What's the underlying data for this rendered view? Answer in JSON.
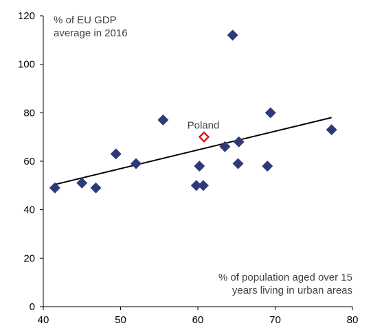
{
  "chart_data": {
    "type": "scatter",
    "title": "",
    "ylabel_note": [
      "% of EU GDP",
      "average in 2016"
    ],
    "xlabel_note": [
      "% of population aged over 15",
      "years  living in urban areas"
    ],
    "xlim": [
      40,
      80
    ],
    "ylim": [
      0,
      120
    ],
    "x_ticks": [
      "40",
      "50",
      "60",
      "70",
      "80"
    ],
    "y_ticks": [
      "0",
      "20",
      "40",
      "60",
      "80",
      "100",
      "120"
    ],
    "grid": false,
    "series": [
      {
        "marker": "filled-diamond",
        "color": "#2E3A78",
        "points": [
          {
            "x": 41.5,
            "y": 49
          },
          {
            "x": 45.0,
            "y": 51
          },
          {
            "x": 46.8,
            "y": 49
          },
          {
            "x": 49.4,
            "y": 63
          },
          {
            "x": 52.0,
            "y": 59
          },
          {
            "x": 55.5,
            "y": 77
          },
          {
            "x": 59.8,
            "y": 50
          },
          {
            "x": 60.2,
            "y": 58
          },
          {
            "x": 60.7,
            "y": 50
          },
          {
            "x": 63.5,
            "y": 66
          },
          {
            "x": 64.5,
            "y": 112
          },
          {
            "x": 65.2,
            "y": 59
          },
          {
            "x": 65.3,
            "y": 68
          },
          {
            "x": 69.0,
            "y": 58
          },
          {
            "x": 69.4,
            "y": 80
          },
          {
            "x": 77.3,
            "y": 73
          }
        ]
      },
      {
        "name": "Poland",
        "marker": "hollow-diamond",
        "color": "#E8141B",
        "points": [
          {
            "x": 60.8,
            "y": 70
          }
        ]
      }
    ],
    "trendline": {
      "x": [
        41.5,
        77.3
      ],
      "y": [
        50.4,
        78.0
      ],
      "color": "#000000"
    }
  }
}
